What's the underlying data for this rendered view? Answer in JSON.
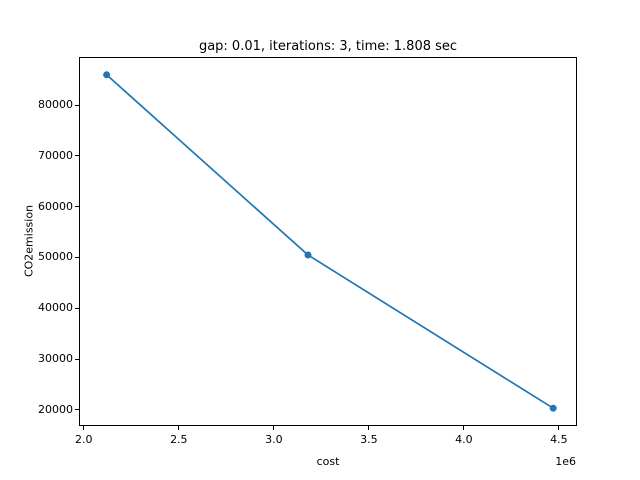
{
  "figure": {
    "background": "#ffffff"
  },
  "chart_data": {
    "type": "line",
    "title": "gap: 0.01, iterations: 3, time: 1.808 sec",
    "xlabel": "cost",
    "ylabel": "CO2emission",
    "x_offset_label": "1e6",
    "x": [
      2120000,
      3180000,
      4470000
    ],
    "y": [
      86000,
      50500,
      20300
    ],
    "xlim": [
      1980000,
      4590000
    ],
    "ylim": [
      17000,
      89300
    ],
    "xtick_values": [
      2000000,
      2500000,
      3000000,
      3500000,
      4000000,
      4500000
    ],
    "xtick_labels": [
      "2.0",
      "2.5",
      "3.0",
      "3.5",
      "4.0",
      "4.5"
    ],
    "ytick_values": [
      20000,
      30000,
      40000,
      50000,
      60000,
      70000,
      80000
    ],
    "ytick_labels": [
      "20000",
      "30000",
      "40000",
      "50000",
      "60000",
      "70000",
      "80000"
    ],
    "line_color": "#1f77b4",
    "marker": "o",
    "grid": false,
    "legend_position": "none"
  }
}
